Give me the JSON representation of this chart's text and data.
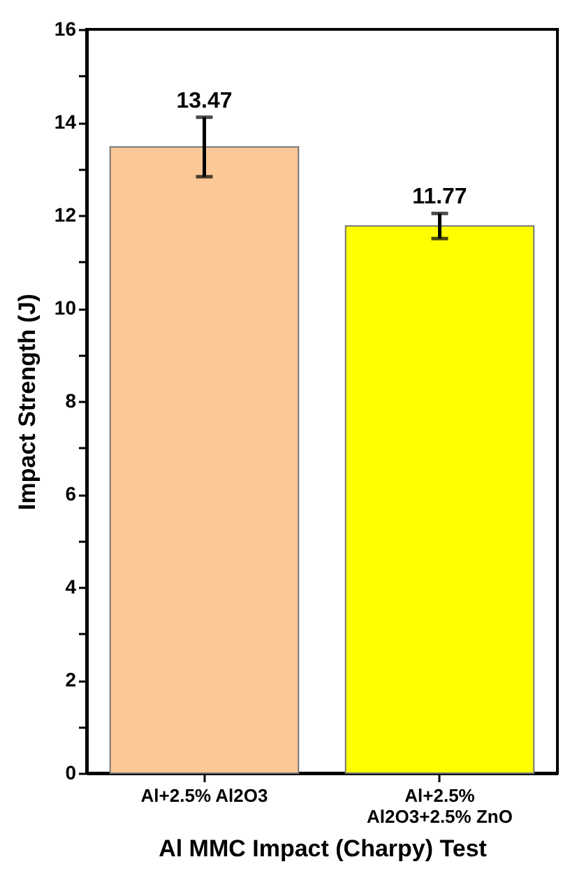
{
  "chart_data": {
    "type": "bar",
    "xlabel": "Al MMC Impact (Charpy) Test",
    "ylabel": "Impact Strength (J)",
    "categories": [
      "Al+2.5% Al2O3",
      "Al+2.5% Al2O3+2.5% ZnO"
    ],
    "values": [
      13.47,
      11.77
    ],
    "colors": [
      "#fbc898",
      "#ffff00"
    ],
    "errors": [
      0.64,
      0.27
    ],
    "data_labels": true,
    "ylim": [
      0,
      16
    ],
    "yticks": [
      0,
      {
        "value": 1,
        "label": null
      },
      2,
      {
        "value": 3,
        "label": null
      },
      4,
      {
        "value": 5,
        "label": null
      },
      6,
      {
        "value": 7,
        "label": null
      },
      8,
      {
        "value": 9,
        "label": null
      },
      10,
      {
        "value": 11,
        "label": null
      },
      12,
      {
        "value": 13,
        "label": null
      },
      14,
      {
        "value": 15,
        "label": null
      },
      16
    ],
    "grid": false
  }
}
